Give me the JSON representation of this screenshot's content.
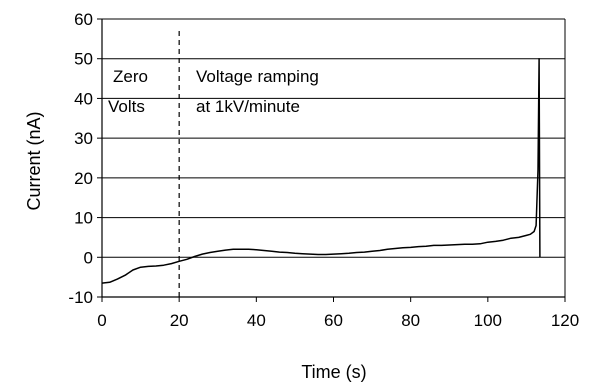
{
  "chart_data": {
    "type": "line",
    "title": "",
    "xlabel": "Time (s)",
    "ylabel": "Current (nA)",
    "xlim": [
      0,
      120
    ],
    "ylim": [
      -10,
      60
    ],
    "x_ticks": [
      "0",
      "20",
      "40",
      "60",
      "80",
      "100",
      "120"
    ],
    "y_ticks": [
      "-10",
      "0",
      "10",
      "20",
      "30",
      "40",
      "50",
      "60"
    ],
    "grid": "horizontal",
    "legend": "none",
    "line_color": "#000000",
    "series": [
      {
        "x": [
          0,
          2,
          4,
          6,
          8,
          10,
          12,
          14,
          16,
          18,
          20,
          22,
          24,
          26,
          28,
          30,
          32,
          34,
          36,
          38,
          40,
          42,
          44,
          46,
          48,
          50,
          52,
          54,
          56,
          58,
          60,
          62,
          64,
          66,
          68,
          70,
          72,
          74,
          76,
          78,
          80,
          82,
          84,
          86,
          88,
          90,
          92,
          94,
          96,
          98,
          100,
          102,
          104,
          106,
          108,
          110,
          111,
          112,
          112.5,
          113,
          113.3,
          113.5
        ],
        "values": [
          -6.5,
          -6.3,
          -5.5,
          -4.5,
          -3.2,
          -2.5,
          -2.3,
          -2.2,
          -2.0,
          -1.6,
          -1.0,
          -0.5,
          0.2,
          0.8,
          1.2,
          1.5,
          1.8,
          2.0,
          2.0,
          2.0,
          1.9,
          1.7,
          1.5,
          1.3,
          1.2,
          1.0,
          0.9,
          0.8,
          0.7,
          0.7,
          0.8,
          0.9,
          1.0,
          1.2,
          1.3,
          1.5,
          1.7,
          2.0,
          2.2,
          2.4,
          2.5,
          2.7,
          2.8,
          3.0,
          3.0,
          3.1,
          3.2,
          3.3,
          3.3,
          3.4,
          3.8,
          4.0,
          4.3,
          4.8,
          5.0,
          5.5,
          5.8,
          6.5,
          8.0,
          22.0,
          50.0,
          0.0
        ]
      }
    ],
    "markers": [
      {
        "type": "vertical-dashed",
        "x": 20
      }
    ],
    "annotations": [
      {
        "line1": "Zero",
        "line2": "Volts"
      },
      {
        "line1": "Voltage ramping",
        "line2": "at 1kV/minute"
      }
    ]
  }
}
